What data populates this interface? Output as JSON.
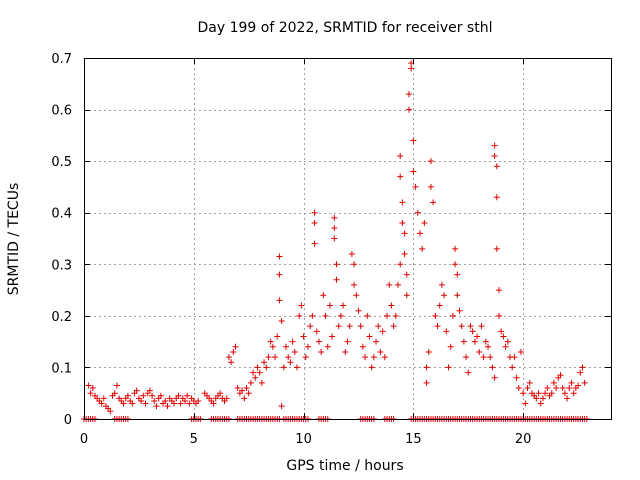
{
  "chart_data": {
    "type": "scatter",
    "title": "Day 199 of 2022, SRMTID for receiver sthl",
    "xlabel": "GPS time / hours",
    "ylabel": "SRMTID / TECUs",
    "xlim": [
      0,
      24
    ],
    "ylim": [
      0,
      0.7
    ],
    "x_ticks": [
      0,
      5,
      10,
      15,
      20
    ],
    "x_tick_labels": [
      "0",
      "5",
      "10",
      "15",
      "20"
    ],
    "y_ticks": [
      0,
      0.1,
      0.2,
      0.3,
      0.4,
      0.5,
      0.6,
      0.7
    ],
    "y_tick_labels": [
      "0",
      "0.1",
      "0.2",
      "0.3",
      "0.4",
      "0.5",
      "0.6",
      "0.7"
    ],
    "grid": true,
    "marker": "plus",
    "color": "#e00000",
    "series": [
      {
        "name": "SRMTID",
        "points": [
          [
            0.2,
            0.065
          ],
          [
            0.3,
            0.05
          ],
          [
            0.4,
            0.06
          ],
          [
            0.5,
            0.045
          ],
          [
            0.6,
            0.04
          ],
          [
            0.7,
            0.035
          ],
          [
            0.8,
            0.03
          ],
          [
            0.9,
            0.04
          ],
          [
            1.0,
            0.025
          ],
          [
            1.1,
            0.02
          ],
          [
            1.2,
            0.015
          ],
          [
            1.3,
            0.045
          ],
          [
            1.4,
            0.05
          ],
          [
            1.5,
            0.065
          ],
          [
            1.6,
            0.04
          ],
          [
            1.7,
            0.035
          ],
          [
            1.8,
            0.03
          ],
          [
            1.9,
            0.04
          ],
          [
            2.0,
            0.045
          ],
          [
            2.1,
            0.035
          ],
          [
            2.2,
            0.03
          ],
          [
            2.3,
            0.05
          ],
          [
            2.4,
            0.055
          ],
          [
            2.5,
            0.04
          ],
          [
            2.6,
            0.035
          ],
          [
            2.7,
            0.045
          ],
          [
            2.8,
            0.03
          ],
          [
            2.9,
            0.05
          ],
          [
            3.0,
            0.055
          ],
          [
            3.1,
            0.045
          ],
          [
            3.2,
            0.035
          ],
          [
            3.3,
            0.025
          ],
          [
            3.4,
            0.04
          ],
          [
            3.5,
            0.045
          ],
          [
            3.6,
            0.03
          ],
          [
            3.7,
            0.035
          ],
          [
            3.8,
            0.025
          ],
          [
            3.9,
            0.04
          ],
          [
            4.0,
            0.035
          ],
          [
            4.1,
            0.03
          ],
          [
            4.2,
            0.04
          ],
          [
            4.3,
            0.045
          ],
          [
            4.4,
            0.03
          ],
          [
            4.5,
            0.04
          ],
          [
            4.6,
            0.035
          ],
          [
            4.7,
            0.045
          ],
          [
            4.8,
            0.03
          ],
          [
            4.9,
            0.04
          ],
          [
            5.0,
            0.035
          ],
          [
            5.1,
            0.03
          ],
          [
            5.2,
            0.035
          ],
          [
            5.5,
            0.05
          ],
          [
            5.6,
            0.045
          ],
          [
            5.7,
            0.04
          ],
          [
            5.8,
            0.035
          ],
          [
            5.9,
            0.03
          ],
          [
            6.0,
            0.04
          ],
          [
            6.1,
            0.045
          ],
          [
            6.2,
            0.05
          ],
          [
            6.3,
            0.04
          ],
          [
            6.4,
            0.035
          ],
          [
            6.5,
            0.04
          ],
          [
            6.6,
            0.12
          ],
          [
            6.7,
            0.11
          ],
          [
            6.8,
            0.13
          ],
          [
            6.9,
            0.14
          ],
          [
            7.0,
            0.06
          ],
          [
            7.1,
            0.05
          ],
          [
            7.2,
            0.055
          ],
          [
            7.3,
            0.04
          ],
          [
            7.4,
            0.06
          ],
          [
            7.5,
            0.05
          ],
          [
            7.6,
            0.07
          ],
          [
            7.7,
            0.09
          ],
          [
            7.8,
            0.08
          ],
          [
            7.9,
            0.1
          ],
          [
            8.0,
            0.09
          ],
          [
            8.1,
            0.07
          ],
          [
            8.2,
            0.11
          ],
          [
            8.3,
            0.1
          ],
          [
            8.4,
            0.12
          ],
          [
            8.5,
            0.15
          ],
          [
            8.6,
            0.14
          ],
          [
            8.7,
            0.12
          ],
          [
            8.8,
            0.16
          ],
          [
            8.9,
            0.315
          ],
          [
            8.9,
            0.28
          ],
          [
            8.9,
            0.23
          ],
          [
            9.0,
            0.19
          ],
          [
            9.0,
            0.025
          ],
          [
            9.1,
            0.1
          ],
          [
            9.2,
            0.14
          ],
          [
            9.3,
            0.12
          ],
          [
            9.4,
            0.11
          ],
          [
            9.5,
            0.15
          ],
          [
            9.6,
            0.13
          ],
          [
            9.7,
            0.1
          ],
          [
            9.8,
            0.2
          ],
          [
            9.9,
            0.22
          ],
          [
            10.0,
            0.16
          ],
          [
            10.1,
            0.12
          ],
          [
            10.2,
            0.14
          ],
          [
            10.3,
            0.18
          ],
          [
            10.4,
            0.2
          ],
          [
            10.5,
            0.4
          ],
          [
            10.5,
            0.38
          ],
          [
            10.5,
            0.34
          ],
          [
            10.6,
            0.17
          ],
          [
            10.7,
            0.15
          ],
          [
            10.8,
            0.13
          ],
          [
            10.9,
            0.24
          ],
          [
            11.0,
            0.2
          ],
          [
            11.1,
            0.14
          ],
          [
            11.2,
            0.22
          ],
          [
            11.3,
            0.16
          ],
          [
            11.4,
            0.39
          ],
          [
            11.4,
            0.37
          ],
          [
            11.4,
            0.35
          ],
          [
            11.5,
            0.3
          ],
          [
            11.5,
            0.27
          ],
          [
            11.6,
            0.18
          ],
          [
            11.7,
            0.2
          ],
          [
            11.8,
            0.22
          ],
          [
            11.9,
            0.13
          ],
          [
            12.0,
            0.15
          ],
          [
            12.1,
            0.18
          ],
          [
            12.2,
            0.32
          ],
          [
            12.3,
            0.3
          ],
          [
            12.3,
            0.26
          ],
          [
            12.4,
            0.24
          ],
          [
            12.5,
            0.21
          ],
          [
            12.6,
            0.18
          ],
          [
            12.7,
            0.14
          ],
          [
            12.8,
            0.12
          ],
          [
            12.9,
            0.2
          ],
          [
            13.0,
            0.16
          ],
          [
            13.1,
            0.1
          ],
          [
            13.2,
            0.12
          ],
          [
            13.3,
            0.15
          ],
          [
            13.4,
            0.18
          ],
          [
            13.5,
            0.13
          ],
          [
            13.6,
            0.17
          ],
          [
            13.7,
            0.12
          ],
          [
            13.8,
            0.2
          ],
          [
            13.9,
            0.26
          ],
          [
            14.0,
            0.22
          ],
          [
            14.1,
            0.18
          ],
          [
            14.2,
            0.2
          ],
          [
            14.3,
            0.26
          ],
          [
            14.4,
            0.3
          ],
          [
            14.4,
            0.51
          ],
          [
            14.4,
            0.47
          ],
          [
            14.5,
            0.42
          ],
          [
            14.5,
            0.38
          ],
          [
            14.6,
            0.36
          ],
          [
            14.6,
            0.32
          ],
          [
            14.7,
            0.28
          ],
          [
            14.7,
            0.24
          ],
          [
            14.8,
            0.6
          ],
          [
            14.8,
            0.63
          ],
          [
            14.9,
            0.68
          ],
          [
            14.9,
            0.69
          ],
          [
            15.0,
            0.54
          ],
          [
            15.0,
            0.48
          ],
          [
            15.1,
            0.45
          ],
          [
            15.2,
            0.4
          ],
          [
            15.3,
            0.36
          ],
          [
            15.4,
            0.33
          ],
          [
            15.5,
            0.38
          ],
          [
            15.6,
            0.07
          ],
          [
            15.6,
            0.1
          ],
          [
            15.7,
            0.13
          ],
          [
            15.8,
            0.5
          ],
          [
            15.8,
            0.45
          ],
          [
            15.9,
            0.42
          ],
          [
            16.0,
            0.2
          ],
          [
            16.1,
            0.18
          ],
          [
            16.2,
            0.22
          ],
          [
            16.3,
            0.26
          ],
          [
            16.4,
            0.24
          ],
          [
            16.5,
            0.17
          ],
          [
            16.6,
            0.1
          ],
          [
            16.7,
            0.14
          ],
          [
            16.8,
            0.2
          ],
          [
            16.9,
            0.33
          ],
          [
            16.9,
            0.3
          ],
          [
            17.0,
            0.28
          ],
          [
            17.0,
            0.24
          ],
          [
            17.1,
            0.21
          ],
          [
            17.2,
            0.18
          ],
          [
            17.3,
            0.15
          ],
          [
            17.4,
            0.12
          ],
          [
            17.5,
            0.09
          ],
          [
            17.6,
            0.18
          ],
          [
            17.7,
            0.17
          ],
          [
            17.8,
            0.15
          ],
          [
            17.9,
            0.16
          ],
          [
            18.0,
            0.13
          ],
          [
            18.1,
            0.18
          ],
          [
            18.2,
            0.12
          ],
          [
            18.3,
            0.15
          ],
          [
            18.4,
            0.14
          ],
          [
            18.5,
            0.12
          ],
          [
            18.6,
            0.1
          ],
          [
            18.7,
            0.08
          ],
          [
            18.7,
            0.53
          ],
          [
            18.7,
            0.51
          ],
          [
            18.8,
            0.49
          ],
          [
            18.8,
            0.43
          ],
          [
            18.8,
            0.33
          ],
          [
            18.9,
            0.25
          ],
          [
            18.9,
            0.2
          ],
          [
            19.0,
            0.17
          ],
          [
            19.1,
            0.16
          ],
          [
            19.2,
            0.14
          ],
          [
            19.3,
            0.15
          ],
          [
            19.4,
            0.12
          ],
          [
            19.5,
            0.1
          ],
          [
            19.6,
            0.12
          ],
          [
            19.7,
            0.08
          ],
          [
            19.8,
            0.06
          ],
          [
            19.9,
            0.13
          ],
          [
            20.0,
            0.05
          ],
          [
            20.1,
            0.03
          ],
          [
            20.2,
            0.06
          ],
          [
            20.3,
            0.07
          ],
          [
            20.4,
            0.05
          ],
          [
            20.5,
            0.045
          ],
          [
            20.6,
            0.04
          ],
          [
            20.7,
            0.05
          ],
          [
            20.8,
            0.03
          ],
          [
            20.9,
            0.04
          ],
          [
            21.0,
            0.05
          ],
          [
            21.1,
            0.06
          ],
          [
            21.2,
            0.045
          ],
          [
            21.3,
            0.05
          ],
          [
            21.4,
            0.07
          ],
          [
            21.5,
            0.06
          ],
          [
            21.6,
            0.08
          ],
          [
            21.7,
            0.085
          ],
          [
            21.8,
            0.06
          ],
          [
            21.9,
            0.05
          ],
          [
            22.0,
            0.04
          ],
          [
            22.1,
            0.06
          ],
          [
            22.2,
            0.07
          ],
          [
            22.3,
            0.05
          ],
          [
            22.4,
            0.06
          ],
          [
            22.5,
            0.065
          ],
          [
            22.6,
            0.09
          ],
          [
            22.7,
            0.1
          ],
          [
            22.8,
            0.07
          ]
        ],
        "zero_segments": [
          [
            0.0,
            0.5
          ],
          [
            1.4,
            2.0
          ],
          [
            4.9,
            5.3
          ],
          [
            5.8,
            6.6
          ],
          [
            7.0,
            8.9
          ],
          [
            9.1,
            10.2
          ],
          [
            10.7,
            11.1
          ],
          [
            12.6,
            13.2
          ],
          [
            13.7,
            14.1
          ],
          [
            14.9,
            22.9
          ]
        ]
      }
    ]
  }
}
